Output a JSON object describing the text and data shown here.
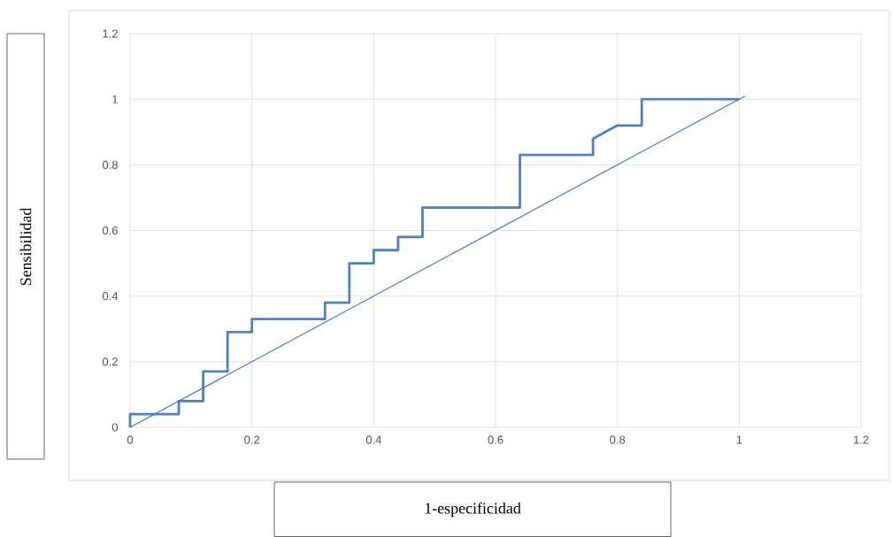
{
  "chart_data": {
    "type": "line",
    "xlabel": "1-especificidad",
    "ylabel": "Sensibilidad",
    "xlim": [
      0,
      1.2
    ],
    "ylim": [
      0,
      1.2
    ],
    "xticks": [
      0,
      0.2,
      0.4,
      0.6,
      0.8,
      1,
      1.2
    ],
    "yticks": [
      0,
      0.2,
      0.4,
      0.6,
      0.8,
      1,
      1.2
    ],
    "grid": true,
    "marker": "none",
    "line_style": "solid",
    "series": [
      {
        "color": "#4f81bd",
        "x": [
          0,
          0,
          0.08,
          0.08,
          0.12,
          0.12,
          0.16,
          0.16,
          0.2,
          0.2,
          0.32,
          0.32,
          0.36,
          0.36,
          0.4,
          0.4,
          0.44,
          0.44,
          0.48,
          0.48,
          0.64,
          0.64,
          0.76,
          0.76,
          0.8,
          0.84,
          0.84,
          1
        ],
        "values": [
          0,
          0.04,
          0.04,
          0.08,
          0.08,
          0.17,
          0.17,
          0.29,
          0.29,
          0.33,
          0.33,
          0.38,
          0.38,
          0.5,
          0.5,
          0.54,
          0.54,
          0.58,
          0.58,
          0.67,
          0.67,
          0.83,
          0.83,
          0.88,
          0.92,
          0.92,
          1,
          1
        ]
      },
      {
        "color": "#4472c4",
        "x": [
          0,
          1.01
        ],
        "values": [
          0,
          1.01
        ]
      }
    ]
  }
}
